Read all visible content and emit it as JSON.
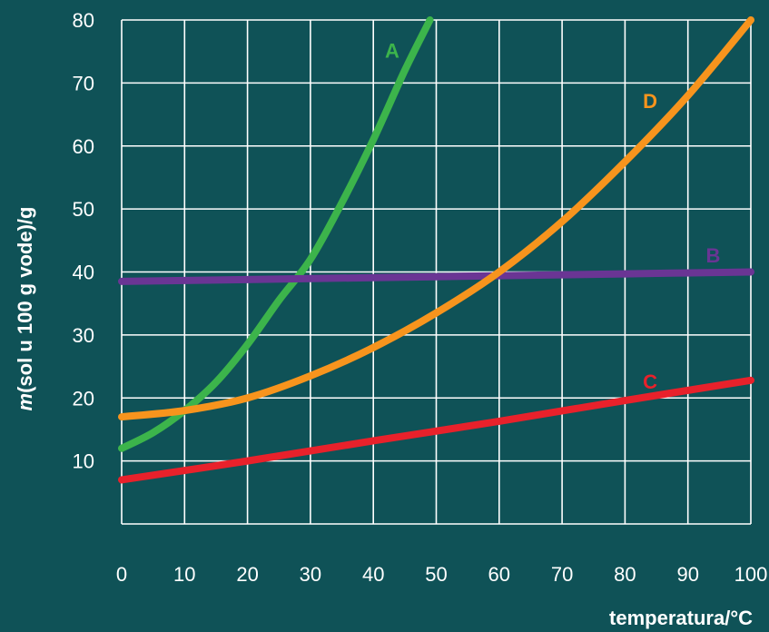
{
  "chart_data": {
    "type": "line",
    "xlabel": "temperatura/°C",
    "ylabel_italic": "m",
    "ylabel_rest": "(sol u 100 g vode)/g",
    "xlim": [
      0,
      100
    ],
    "ylim": [
      0,
      80
    ],
    "x_ticks": [
      "0",
      "10",
      "20",
      "30",
      "40",
      "50",
      "60",
      "70",
      "80",
      "90",
      "100"
    ],
    "y_ticks": [
      "10",
      "20",
      "30",
      "40",
      "50",
      "60",
      "70",
      "80"
    ],
    "grid": true,
    "series": [
      {
        "name": "A",
        "color": "#3cb44b",
        "x": [
          0,
          5,
          10,
          15,
          20,
          25,
          30,
          35,
          40,
          45,
          49
        ],
        "y": [
          12,
          14.5,
          18,
          22.5,
          28.5,
          35.5,
          42,
          51,
          61,
          72,
          80
        ]
      },
      {
        "name": "B",
        "color": "#6a3594",
        "x": [
          0,
          20,
          40,
          60,
          80,
          100
        ],
        "y": [
          38.5,
          38.8,
          39.1,
          39.4,
          39.7,
          40
        ]
      },
      {
        "name": "C",
        "color": "#e8212b",
        "x": [
          0,
          20,
          40,
          60,
          80,
          100
        ],
        "y": [
          7,
          10,
          13.2,
          16.3,
          19.6,
          22.8
        ]
      },
      {
        "name": "D",
        "color": "#f7941d",
        "x": [
          0,
          10,
          20,
          30,
          40,
          50,
          60,
          70,
          80,
          90,
          100
        ],
        "y": [
          17,
          18,
          20,
          23.5,
          28,
          33.5,
          40,
          48,
          57.5,
          68,
          80
        ]
      }
    ]
  }
}
